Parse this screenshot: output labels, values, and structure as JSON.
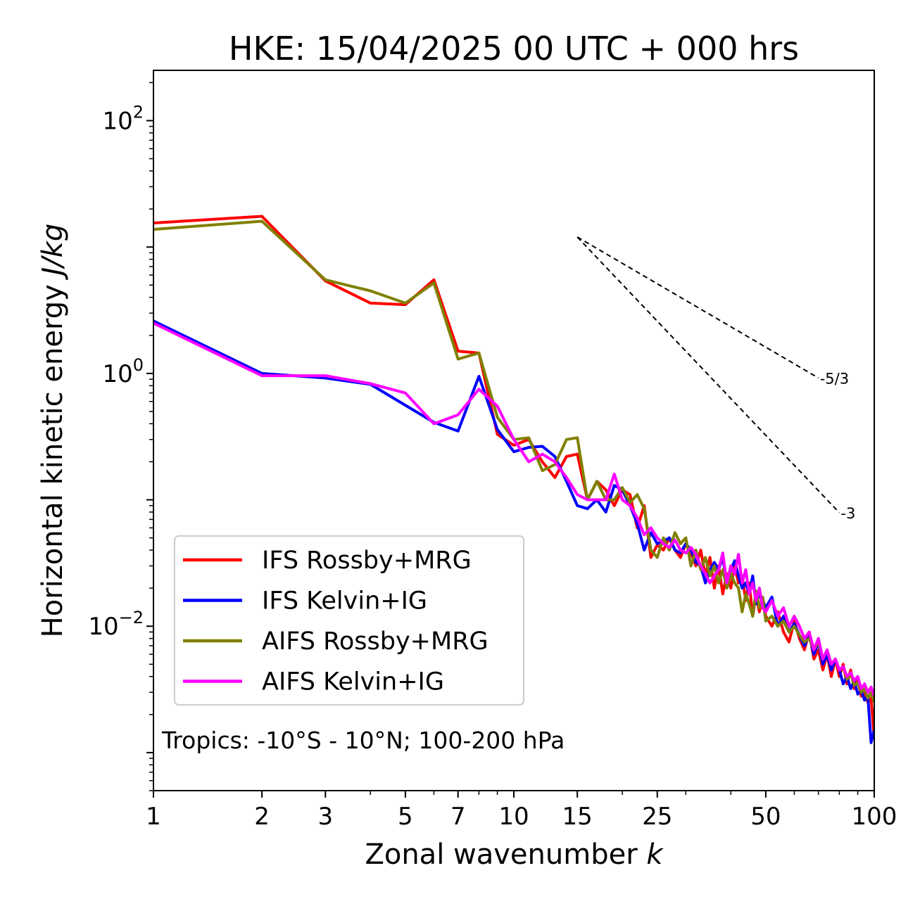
{
  "chart_data": {
    "type": "line",
    "title": "HKE: 15/04/2025 00 UTC + 000 hrs",
    "xlabel": "Zonal wavenumber",
    "xlabel_var": "k",
    "ylabel": "Horizontal kinetic energy",
    "ylabel_unit": "J/kg",
    "xscale": "log",
    "yscale": "log",
    "xlim": [
      1,
      100
    ],
    "ylim": [
      0.0005,
      250
    ],
    "x_ticks": [
      {
        "value": 1,
        "label": "1"
      },
      {
        "value": 2,
        "label": "2"
      },
      {
        "value": 3,
        "label": "3"
      },
      {
        "value": 5,
        "label": "5"
      },
      {
        "value": 7,
        "label": "7"
      },
      {
        "value": 10,
        "label": "10"
      },
      {
        "value": 15,
        "label": "15"
      },
      {
        "value": 25,
        "label": "25"
      },
      {
        "value": 50,
        "label": "50"
      },
      {
        "value": 100,
        "label": "100"
      }
    ],
    "y_ticks": [
      {
        "value": 100,
        "base": "10",
        "exp": "2"
      },
      {
        "value": 1,
        "base": "10",
        "exp": "0"
      },
      {
        "value": 0.01,
        "base": "10",
        "exp": "−2"
      }
    ],
    "grid": false,
    "legend_position": "lower-left",
    "annotation": "Tropics: -10°S - 10°N; 100-200 hPa",
    "reference_lines": [
      {
        "label": "-5/3",
        "slope": -1.6667,
        "x": [
          15,
          70
        ],
        "y_start": 12
      },
      {
        "label": "-3",
        "slope": -3,
        "x": [
          15,
          80
        ],
        "y_start": 12
      }
    ],
    "series": [
      {
        "name": "IFS Rossby+MRG",
        "color": "#ff0000",
        "x": [
          1,
          2,
          3,
          4,
          5,
          6,
          7,
          8,
          9,
          10,
          11,
          12,
          13,
          14,
          15,
          16,
          17,
          18,
          19,
          20,
          21,
          22,
          23,
          24,
          25,
          26,
          27,
          28,
          29,
          30,
          31,
          32,
          33,
          34,
          35,
          36,
          37,
          38,
          39,
          40,
          41,
          42,
          43,
          44,
          45,
          46,
          47,
          48,
          49,
          50,
          52,
          54,
          56,
          58,
          60,
          62,
          64,
          66,
          68,
          70,
          72,
          74,
          76,
          78,
          80,
          82,
          84,
          86,
          88,
          90,
          92,
          94,
          96,
          98,
          100
        ],
        "values": [
          15.5,
          17.5,
          5.4,
          3.6,
          3.5,
          5.5,
          1.5,
          1.45,
          0.33,
          0.27,
          0.3,
          0.2,
          0.15,
          0.22,
          0.23,
          0.1,
          0.14,
          0.12,
          0.09,
          0.12,
          0.11,
          0.06,
          0.09,
          0.035,
          0.044,
          0.04,
          0.05,
          0.04,
          0.035,
          0.045,
          0.038,
          0.03,
          0.04,
          0.025,
          0.035,
          0.02,
          0.03,
          0.018,
          0.026,
          0.02,
          0.03,
          0.022,
          0.025,
          0.016,
          0.022,
          0.012,
          0.018,
          0.013,
          0.017,
          0.012,
          0.01,
          0.013,
          0.009,
          0.0075,
          0.011,
          0.008,
          0.0065,
          0.009,
          0.0055,
          0.0065,
          0.0045,
          0.006,
          0.004,
          0.0055,
          0.004,
          0.005,
          0.0035,
          0.0045,
          0.0032,
          0.0038,
          0.0028,
          0.003,
          0.0025,
          0.0027,
          0.0013
        ]
      },
      {
        "name": "IFS Kelvin+IG",
        "color": "#0000ff",
        "x": [
          1,
          2,
          3,
          4,
          5,
          6,
          7,
          8,
          9,
          10,
          11,
          12,
          13,
          14,
          15,
          16,
          17,
          18,
          19,
          20,
          21,
          22,
          23,
          24,
          25,
          26,
          27,
          28,
          29,
          30,
          31,
          32,
          33,
          34,
          35,
          36,
          37,
          38,
          39,
          40,
          41,
          42,
          43,
          44,
          45,
          46,
          47,
          48,
          49,
          50,
          52,
          54,
          56,
          58,
          60,
          62,
          64,
          66,
          68,
          70,
          72,
          74,
          76,
          78,
          80,
          82,
          84,
          86,
          88,
          90,
          92,
          94,
          96,
          98,
          100
        ],
        "values": [
          2.6,
          1.0,
          0.92,
          0.82,
          0.56,
          0.41,
          0.35,
          0.95,
          0.36,
          0.24,
          0.26,
          0.265,
          0.22,
          0.14,
          0.09,
          0.085,
          0.1,
          0.08,
          0.13,
          0.12,
          0.09,
          0.065,
          0.04,
          0.055,
          0.045,
          0.047,
          0.05,
          0.04,
          0.038,
          0.045,
          0.04,
          0.032,
          0.03,
          0.022,
          0.028,
          0.032,
          0.028,
          0.035,
          0.022,
          0.028,
          0.033,
          0.025,
          0.02,
          0.022,
          0.018,
          0.025,
          0.015,
          0.018,
          0.016,
          0.014,
          0.017,
          0.01,
          0.012,
          0.009,
          0.0105,
          0.0085,
          0.007,
          0.0085,
          0.006,
          0.0075,
          0.005,
          0.006,
          0.0045,
          0.0055,
          0.0045,
          0.0035,
          0.004,
          0.0032,
          0.0037,
          0.0029,
          0.0031,
          0.0026,
          0.0028,
          0.0012,
          0.0015
        ]
      },
      {
        "name": "AIFS Rossby+MRG",
        "color": "#808000",
        "x": [
          1,
          2,
          3,
          4,
          5,
          6,
          7,
          8,
          9,
          10,
          11,
          12,
          13,
          14,
          15,
          16,
          17,
          18,
          19,
          20,
          21,
          22,
          23,
          24,
          25,
          26,
          27,
          28,
          29,
          30,
          31,
          32,
          33,
          34,
          35,
          36,
          37,
          38,
          39,
          40,
          41,
          42,
          43,
          44,
          45,
          46,
          47,
          48,
          49,
          50,
          52,
          54,
          56,
          58,
          60,
          62,
          64,
          66,
          68,
          70,
          72,
          74,
          76,
          78,
          80,
          82,
          84,
          86,
          88,
          90,
          92,
          94,
          96,
          98,
          100
        ],
        "values": [
          13.8,
          16.0,
          5.5,
          4.5,
          3.6,
          5.2,
          1.3,
          1.45,
          0.45,
          0.3,
          0.31,
          0.17,
          0.19,
          0.3,
          0.31,
          0.1,
          0.14,
          0.1,
          0.1,
          0.125,
          0.095,
          0.11,
          0.085,
          0.04,
          0.035,
          0.05,
          0.04,
          0.055,
          0.045,
          0.05,
          0.03,
          0.04,
          0.028,
          0.035,
          0.025,
          0.03,
          0.022,
          0.028,
          0.02,
          0.026,
          0.022,
          0.02,
          0.013,
          0.018,
          0.015,
          0.012,
          0.019,
          0.014,
          0.017,
          0.011,
          0.012,
          0.01,
          0.011,
          0.009,
          0.01,
          0.0085,
          0.0075,
          0.008,
          0.0065,
          0.0075,
          0.0055,
          0.0065,
          0.005,
          0.0055,
          0.0045,
          0.0048,
          0.0038,
          0.0042,
          0.0034,
          0.0036,
          0.003,
          0.0032,
          0.0027,
          0.003,
          0.0025
        ]
      },
      {
        "name": "AIFS Kelvin+IG",
        "color": "#ff00ff",
        "x": [
          1,
          2,
          3,
          4,
          5,
          6,
          7,
          8,
          9,
          10,
          11,
          12,
          13,
          14,
          15,
          16,
          17,
          18,
          19,
          20,
          21,
          22,
          23,
          24,
          25,
          26,
          27,
          28,
          29,
          30,
          31,
          32,
          33,
          34,
          35,
          36,
          37,
          38,
          39,
          40,
          41,
          42,
          43,
          44,
          45,
          46,
          47,
          48,
          49,
          50,
          52,
          54,
          56,
          58,
          60,
          62,
          64,
          66,
          68,
          70,
          72,
          74,
          76,
          78,
          80,
          82,
          84,
          86,
          88,
          90,
          92,
          94,
          96,
          98,
          100
        ],
        "values": [
          2.5,
          0.96,
          0.96,
          0.83,
          0.7,
          0.4,
          0.47,
          0.75,
          0.55,
          0.3,
          0.2,
          0.23,
          0.2,
          0.15,
          0.11,
          0.1,
          0.1,
          0.1,
          0.16,
          0.1,
          0.09,
          0.072,
          0.053,
          0.06,
          0.05,
          0.045,
          0.042,
          0.048,
          0.04,
          0.038,
          0.042,
          0.037,
          0.03,
          0.026,
          0.022,
          0.025,
          0.028,
          0.038,
          0.022,
          0.03,
          0.026,
          0.037,
          0.022,
          0.028,
          0.018,
          0.022,
          0.016,
          0.02,
          0.014,
          0.013,
          0.016,
          0.012,
          0.014,
          0.01,
          0.012,
          0.01,
          0.008,
          0.009,
          0.0065,
          0.008,
          0.0055,
          0.0065,
          0.005,
          0.0055,
          0.0045,
          0.0048,
          0.004,
          0.0043,
          0.0037,
          0.004,
          0.0032,
          0.0035,
          0.003,
          0.0033,
          0.0028
        ]
      }
    ]
  }
}
